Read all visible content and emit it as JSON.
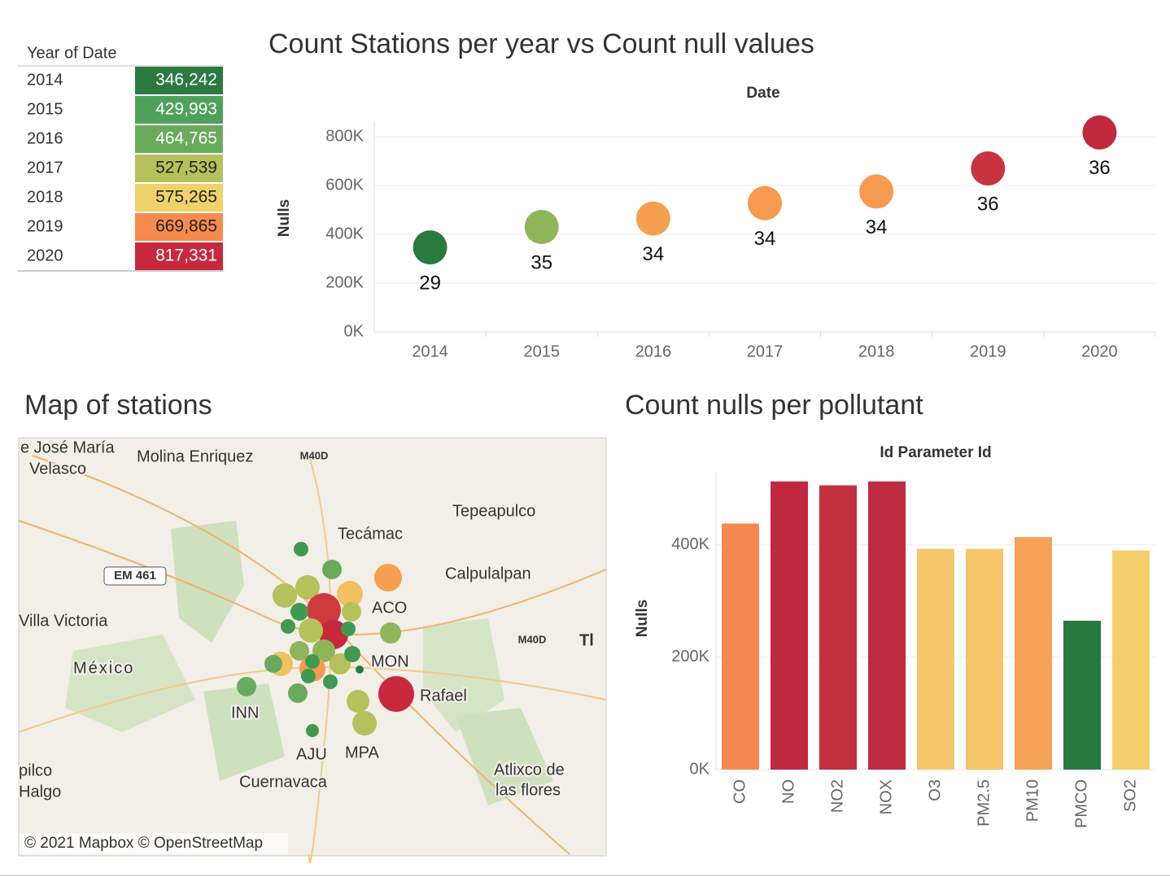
{
  "chart_data": [
    {
      "type": "table",
      "header": "Year of Date",
      "categories": [
        "2014",
        "2015",
        "2016",
        "2017",
        "2018",
        "2019",
        "2020"
      ],
      "values": [
        346242,
        429993,
        464765,
        527539,
        575265,
        669865,
        817331
      ],
      "value_labels": [
        "346,242",
        "429,993",
        "464,765",
        "527,539",
        "575,265",
        "669,865",
        "817,331"
      ],
      "colors": [
        "#2a7a3f",
        "#4ea15a",
        "#6aaa5c",
        "#b5c15a",
        "#efd26a",
        "#f58b4c",
        "#c8283e"
      ]
    },
    {
      "type": "scatter",
      "title": "Count Stations per year vs Count null values",
      "x_label": "Date",
      "y_label": "Nulls",
      "categories": [
        "2014",
        "2015",
        "2016",
        "2017",
        "2018",
        "2019",
        "2020"
      ],
      "values": [
        346242,
        429993,
        464765,
        527539,
        575265,
        669865,
        817331
      ],
      "station_counts": [
        29,
        35,
        34,
        34,
        34,
        36,
        36
      ],
      "colors": [
        "#2a7a3f",
        "#8fb55a",
        "#f5a04f",
        "#f59a4f",
        "#f59a4f",
        "#c8343e",
        "#c0283e"
      ],
      "ylim": [
        0,
        860000
      ],
      "yticks": [
        {
          "value": 0,
          "label": "0K"
        },
        {
          "value": 200000,
          "label": "200K"
        },
        {
          "value": 400000,
          "label": "400K"
        },
        {
          "value": 600000,
          "label": "600K"
        },
        {
          "value": 800000,
          "label": "800K"
        }
      ],
      "grid": true
    },
    {
      "type": "map",
      "title": "Map of stations",
      "labels": [
        "e José María",
        "Velasco",
        "Molina Enriquez",
        "M40D",
        "EM 461",
        "Tecámac",
        "Tepeapulco",
        "Calpulalpan",
        "Villa Victoria",
        "México",
        "ACO",
        "MON",
        "Rafael",
        "INN",
        "AJU",
        "MPA",
        "Cuernavaca",
        "Atlixco de",
        "las flores",
        "pilco",
        "Halgo",
        "M40D",
        "Tl"
      ],
      "attribution": "© 2021 Mapbox © OpenStreetMap"
    },
    {
      "type": "bar",
      "title": "Count nulls per pollutant",
      "x_label": "Id Parameter Id",
      "y_label": "Nulls",
      "categories": [
        "CO",
        "NO",
        "NO2",
        "NOX",
        "O3",
        "PM2.5",
        "PM10",
        "PMCO",
        "SO2"
      ],
      "values": [
        438000,
        513000,
        506000,
        513000,
        393000,
        393000,
        414000,
        265000,
        390000
      ],
      "colors": [
        "#f48a4f",
        "#c0283f",
        "#c33040",
        "#be2a40",
        "#f5c76a",
        "#f5c56a",
        "#f5a256",
        "#267a3f",
        "#f3ce6a"
      ],
      "ylim": [
        0,
        530000
      ],
      "yticks": [
        {
          "value": 0,
          "label": "0K"
        },
        {
          "value": 200000,
          "label": "200K"
        },
        {
          "value": 400000,
          "label": "400K"
        }
      ],
      "grid": true
    }
  ]
}
